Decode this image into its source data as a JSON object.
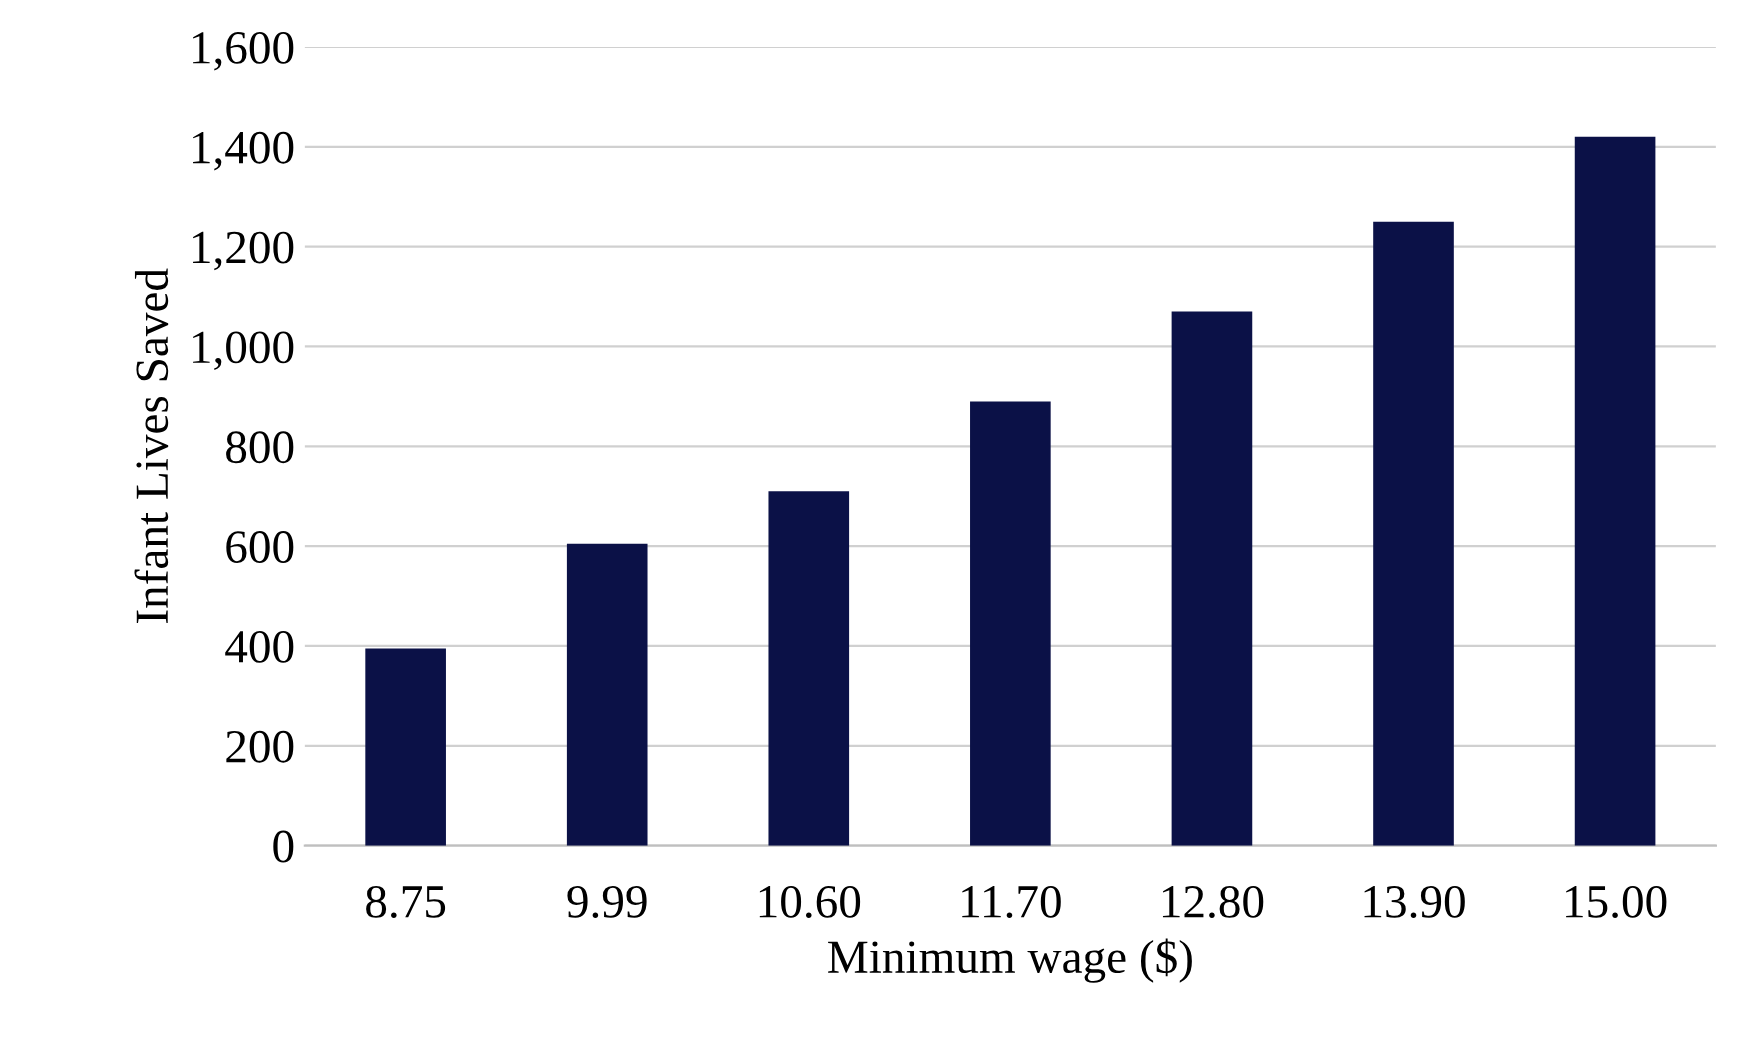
{
  "chart_data": {
    "type": "bar",
    "xlabel": "Minimum wage ($)",
    "ylabel": "Infant Lives Saved",
    "categories": [
      "8.75",
      "9.99",
      "10.60",
      "11.70",
      "12.80",
      "13.90",
      "15.00"
    ],
    "values": [
      395,
      605,
      710,
      890,
      1070,
      1250,
      1420
    ],
    "color": "#0b1147",
    "ylim": [
      0,
      1600
    ],
    "yticks": [
      {
        "value": 0,
        "label": "0"
      },
      {
        "value": 200,
        "label": "200"
      },
      {
        "value": 400,
        "label": "400"
      },
      {
        "value": 600,
        "label": "600"
      },
      {
        "value": 800,
        "label": "800"
      },
      {
        "value": 1000,
        "label": "1,000"
      },
      {
        "value": 1200,
        "label": "1,200"
      },
      {
        "value": 1400,
        "label": "1,400"
      },
      {
        "value": 1600,
        "label": "1,600"
      }
    ],
    "grid": "y",
    "legend": false
  }
}
